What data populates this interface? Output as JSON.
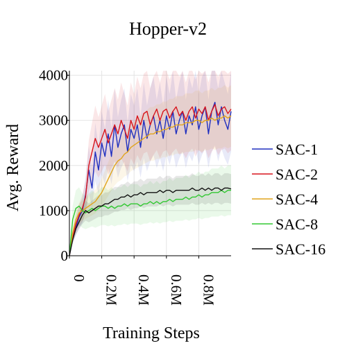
{
  "chart_data": {
    "type": "line",
    "title": "Hopper-v2",
    "xlabel": "Training Steps",
    "ylabel": "Avg. Reward",
    "xlim": [
      0,
      1000000
    ],
    "ylim": [
      0,
      4100
    ],
    "xticks": [
      0,
      200000,
      400000,
      600000,
      800000
    ],
    "xtick_labels": [
      "0",
      "0.2M",
      "0.4M",
      "0.6M",
      "0.8M"
    ],
    "yticks": [
      0,
      1000,
      2000,
      3000,
      4000
    ],
    "ytick_labels": [
      "0",
      "1000",
      "2000",
      "3000",
      "4000"
    ],
    "grid": true,
    "legend_position": "right",
    "series": [
      {
        "name": "SAC-1",
        "color": "#1f2fbf",
        "x": [
          0,
          20000,
          40000,
          60000,
          80000,
          100000,
          120000,
          140000,
          160000,
          180000,
          200000,
          220000,
          240000,
          260000,
          280000,
          300000,
          320000,
          340000,
          360000,
          380000,
          400000,
          420000,
          440000,
          460000,
          480000,
          500000,
          520000,
          540000,
          560000,
          580000,
          600000,
          620000,
          640000,
          660000,
          680000,
          700000,
          720000,
          740000,
          760000,
          780000,
          800000,
          820000,
          840000,
          860000,
          880000,
          900000,
          920000,
          940000,
          960000,
          980000,
          1000000
        ],
        "y": [
          0,
          380,
          620,
          860,
          1000,
          1350,
          1900,
          1500,
          2300,
          1900,
          2500,
          2200,
          2700,
          2200,
          2900,
          2400,
          2700,
          2900,
          2300,
          2800,
          2600,
          2900,
          2400,
          3000,
          2600,
          2900,
          3100,
          2700,
          3000,
          2600,
          3100,
          2800,
          3200,
          2700,
          3000,
          3200,
          2700,
          3100,
          2900,
          3300,
          2800,
          3100,
          3300,
          2700,
          3200,
          3400,
          2900,
          3300,
          3000,
          2800,
          3200
        ]
      },
      {
        "name": "SAC-2",
        "color": "#d8141c",
        "x": [
          0,
          20000,
          40000,
          60000,
          80000,
          100000,
          120000,
          140000,
          160000,
          180000,
          200000,
          220000,
          240000,
          260000,
          280000,
          300000,
          320000,
          340000,
          360000,
          380000,
          400000,
          420000,
          440000,
          460000,
          480000,
          500000,
          520000,
          540000,
          560000,
          580000,
          600000,
          620000,
          640000,
          660000,
          680000,
          700000,
          720000,
          740000,
          760000,
          780000,
          800000,
          820000,
          840000,
          860000,
          880000,
          900000,
          920000,
          940000,
          960000,
          980000,
          1000000
        ],
        "y": [
          0,
          400,
          700,
          900,
          1050,
          1300,
          2000,
          2300,
          2600,
          2400,
          2600,
          2800,
          2500,
          2700,
          2900,
          2700,
          3000,
          2800,
          2600,
          3000,
          2800,
          3100,
          2900,
          3150,
          3200,
          2900,
          3100,
          3250,
          3000,
          3200,
          3250,
          3050,
          3200,
          3300,
          3100,
          3200,
          3000,
          3200,
          3300,
          3050,
          3250,
          3150,
          3300,
          3000,
          3200,
          3350,
          3100,
          3250,
          3300,
          3150,
          3250
        ]
      },
      {
        "name": "SAC-4",
        "color": "#e0a41c",
        "x": [
          0,
          20000,
          40000,
          60000,
          80000,
          100000,
          120000,
          140000,
          160000,
          180000,
          200000,
          220000,
          240000,
          260000,
          280000,
          300000,
          320000,
          340000,
          360000,
          380000,
          400000,
          420000,
          440000,
          460000,
          480000,
          500000,
          520000,
          540000,
          560000,
          580000,
          600000,
          620000,
          640000,
          660000,
          680000,
          700000,
          720000,
          740000,
          760000,
          780000,
          800000,
          820000,
          840000,
          860000,
          880000,
          900000,
          920000,
          940000,
          960000,
          980000,
          1000000
        ],
        "y": [
          0,
          500,
          800,
          950,
          1000,
          1050,
          1100,
          1150,
          1200,
          1300,
          1400,
          1550,
          1700,
          1850,
          2000,
          2100,
          2150,
          2250,
          2300,
          2400,
          2450,
          2500,
          2550,
          2600,
          2650,
          2700,
          2700,
          2750,
          2750,
          2800,
          2800,
          2850,
          2850,
          2900,
          2900,
          2900,
          2950,
          2950,
          2950,
          3000,
          3000,
          2950,
          3000,
          3000,
          3050,
          3000,
          3050,
          3050,
          3100,
          3050,
          3100
        ]
      },
      {
        "name": "SAC-8",
        "color": "#32c832",
        "x": [
          0,
          20000,
          40000,
          60000,
          80000,
          100000,
          120000,
          140000,
          160000,
          180000,
          200000,
          220000,
          240000,
          260000,
          280000,
          300000,
          320000,
          340000,
          360000,
          380000,
          400000,
          420000,
          440000,
          460000,
          480000,
          500000,
          520000,
          540000,
          560000,
          580000,
          600000,
          620000,
          640000,
          660000,
          680000,
          700000,
          720000,
          740000,
          760000,
          780000,
          800000,
          820000,
          840000,
          860000,
          880000,
          900000,
          920000,
          940000,
          960000,
          980000,
          1000000
        ],
        "y": [
          0,
          800,
          1050,
          1100,
          1000,
          950,
          1000,
          1050,
          1000,
          1050,
          1100,
          1100,
          1050,
          1100,
          1050,
          1100,
          1100,
          1150,
          1100,
          1150,
          1150,
          1150,
          1100,
          1150,
          1150,
          1200,
          1150,
          1200,
          1150,
          1200,
          1200,
          1250,
          1200,
          1250,
          1250,
          1250,
          1300,
          1250,
          1300,
          1300,
          1350,
          1300,
          1350,
          1350,
          1400,
          1400,
          1400,
          1450,
          1400,
          1450,
          1450
        ]
      },
      {
        "name": "SAC-16",
        "color": "#111111",
        "x": [
          0,
          20000,
          40000,
          60000,
          80000,
          100000,
          120000,
          140000,
          160000,
          180000,
          200000,
          220000,
          240000,
          260000,
          280000,
          300000,
          320000,
          340000,
          360000,
          380000,
          400000,
          420000,
          440000,
          460000,
          480000,
          500000,
          520000,
          540000,
          560000,
          580000,
          600000,
          620000,
          640000,
          660000,
          680000,
          700000,
          720000,
          740000,
          760000,
          780000,
          800000,
          820000,
          840000,
          860000,
          880000,
          900000,
          920000,
          940000,
          960000,
          980000,
          1000000
        ],
        "y": [
          0,
          350,
          600,
          750,
          900,
          1000,
          950,
          1000,
          1050,
          1100,
          1100,
          1150,
          1150,
          1200,
          1250,
          1250,
          1300,
          1300,
          1350,
          1300,
          1350,
          1350,
          1400,
          1350,
          1400,
          1400,
          1400,
          1400,
          1450,
          1400,
          1450,
          1450,
          1400,
          1450,
          1450,
          1450,
          1450,
          1450,
          1500,
          1450,
          1450,
          1500,
          1450,
          1500,
          1450,
          1500,
          1500,
          1450,
          1500,
          1500,
          1480
        ]
      }
    ]
  }
}
